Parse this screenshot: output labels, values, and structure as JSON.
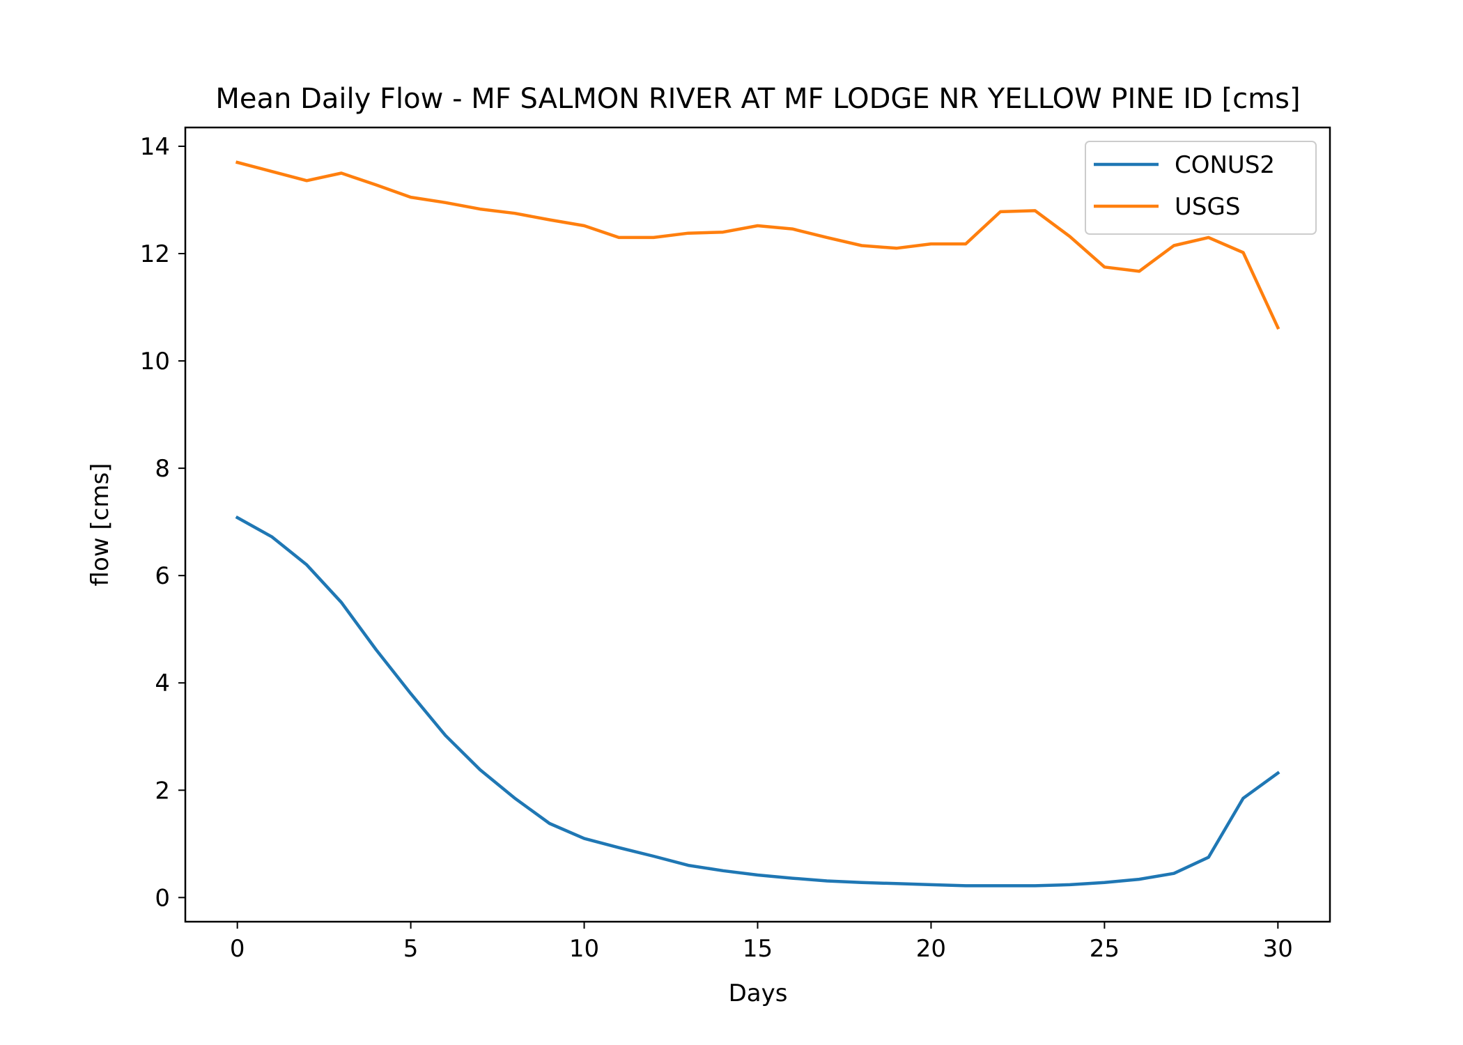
{
  "chart_data": {
    "type": "line",
    "title": "Mean Daily Flow - MF SALMON RIVER AT MF LODGE NR YELLOW PINE ID [cms]",
    "xlabel": "Days",
    "ylabel": "flow [cms]",
    "xlim": [
      -1.5,
      31.5
    ],
    "ylim": [
      -0.45,
      14.35
    ],
    "xticks": [
      0,
      5,
      10,
      15,
      20,
      25,
      30
    ],
    "yticks": [
      0,
      2,
      4,
      6,
      8,
      10,
      12,
      14
    ],
    "grid": false,
    "legend_position": "top-right",
    "x": [
      0,
      1,
      2,
      3,
      4,
      5,
      6,
      7,
      8,
      9,
      10,
      11,
      12,
      13,
      14,
      15,
      16,
      17,
      18,
      19,
      20,
      21,
      22,
      23,
      24,
      25,
      26,
      27,
      28,
      29,
      30
    ],
    "series": [
      {
        "name": "CONUS2",
        "color": "#1f77b4",
        "values": [
          7.08,
          6.72,
          6.2,
          5.5,
          4.62,
          3.8,
          3.02,
          2.38,
          1.85,
          1.38,
          1.1,
          0.93,
          0.77,
          0.6,
          0.5,
          0.42,
          0.36,
          0.31,
          0.28,
          0.26,
          0.24,
          0.22,
          0.22,
          0.22,
          0.24,
          0.28,
          0.34,
          0.45,
          0.75,
          1.85,
          2.32
        ]
      },
      {
        "name": "USGS",
        "color": "#ff7f0e",
        "values": [
          13.7,
          13.53,
          13.36,
          13.5,
          13.28,
          13.05,
          12.95,
          12.83,
          12.75,
          12.63,
          12.52,
          12.3,
          12.3,
          12.38,
          12.4,
          12.52,
          12.46,
          12.3,
          12.15,
          12.1,
          12.18,
          12.18,
          12.78,
          12.8,
          12.32,
          11.75,
          11.67,
          12.15,
          12.3,
          12.02,
          10.62
        ]
      }
    ]
  }
}
